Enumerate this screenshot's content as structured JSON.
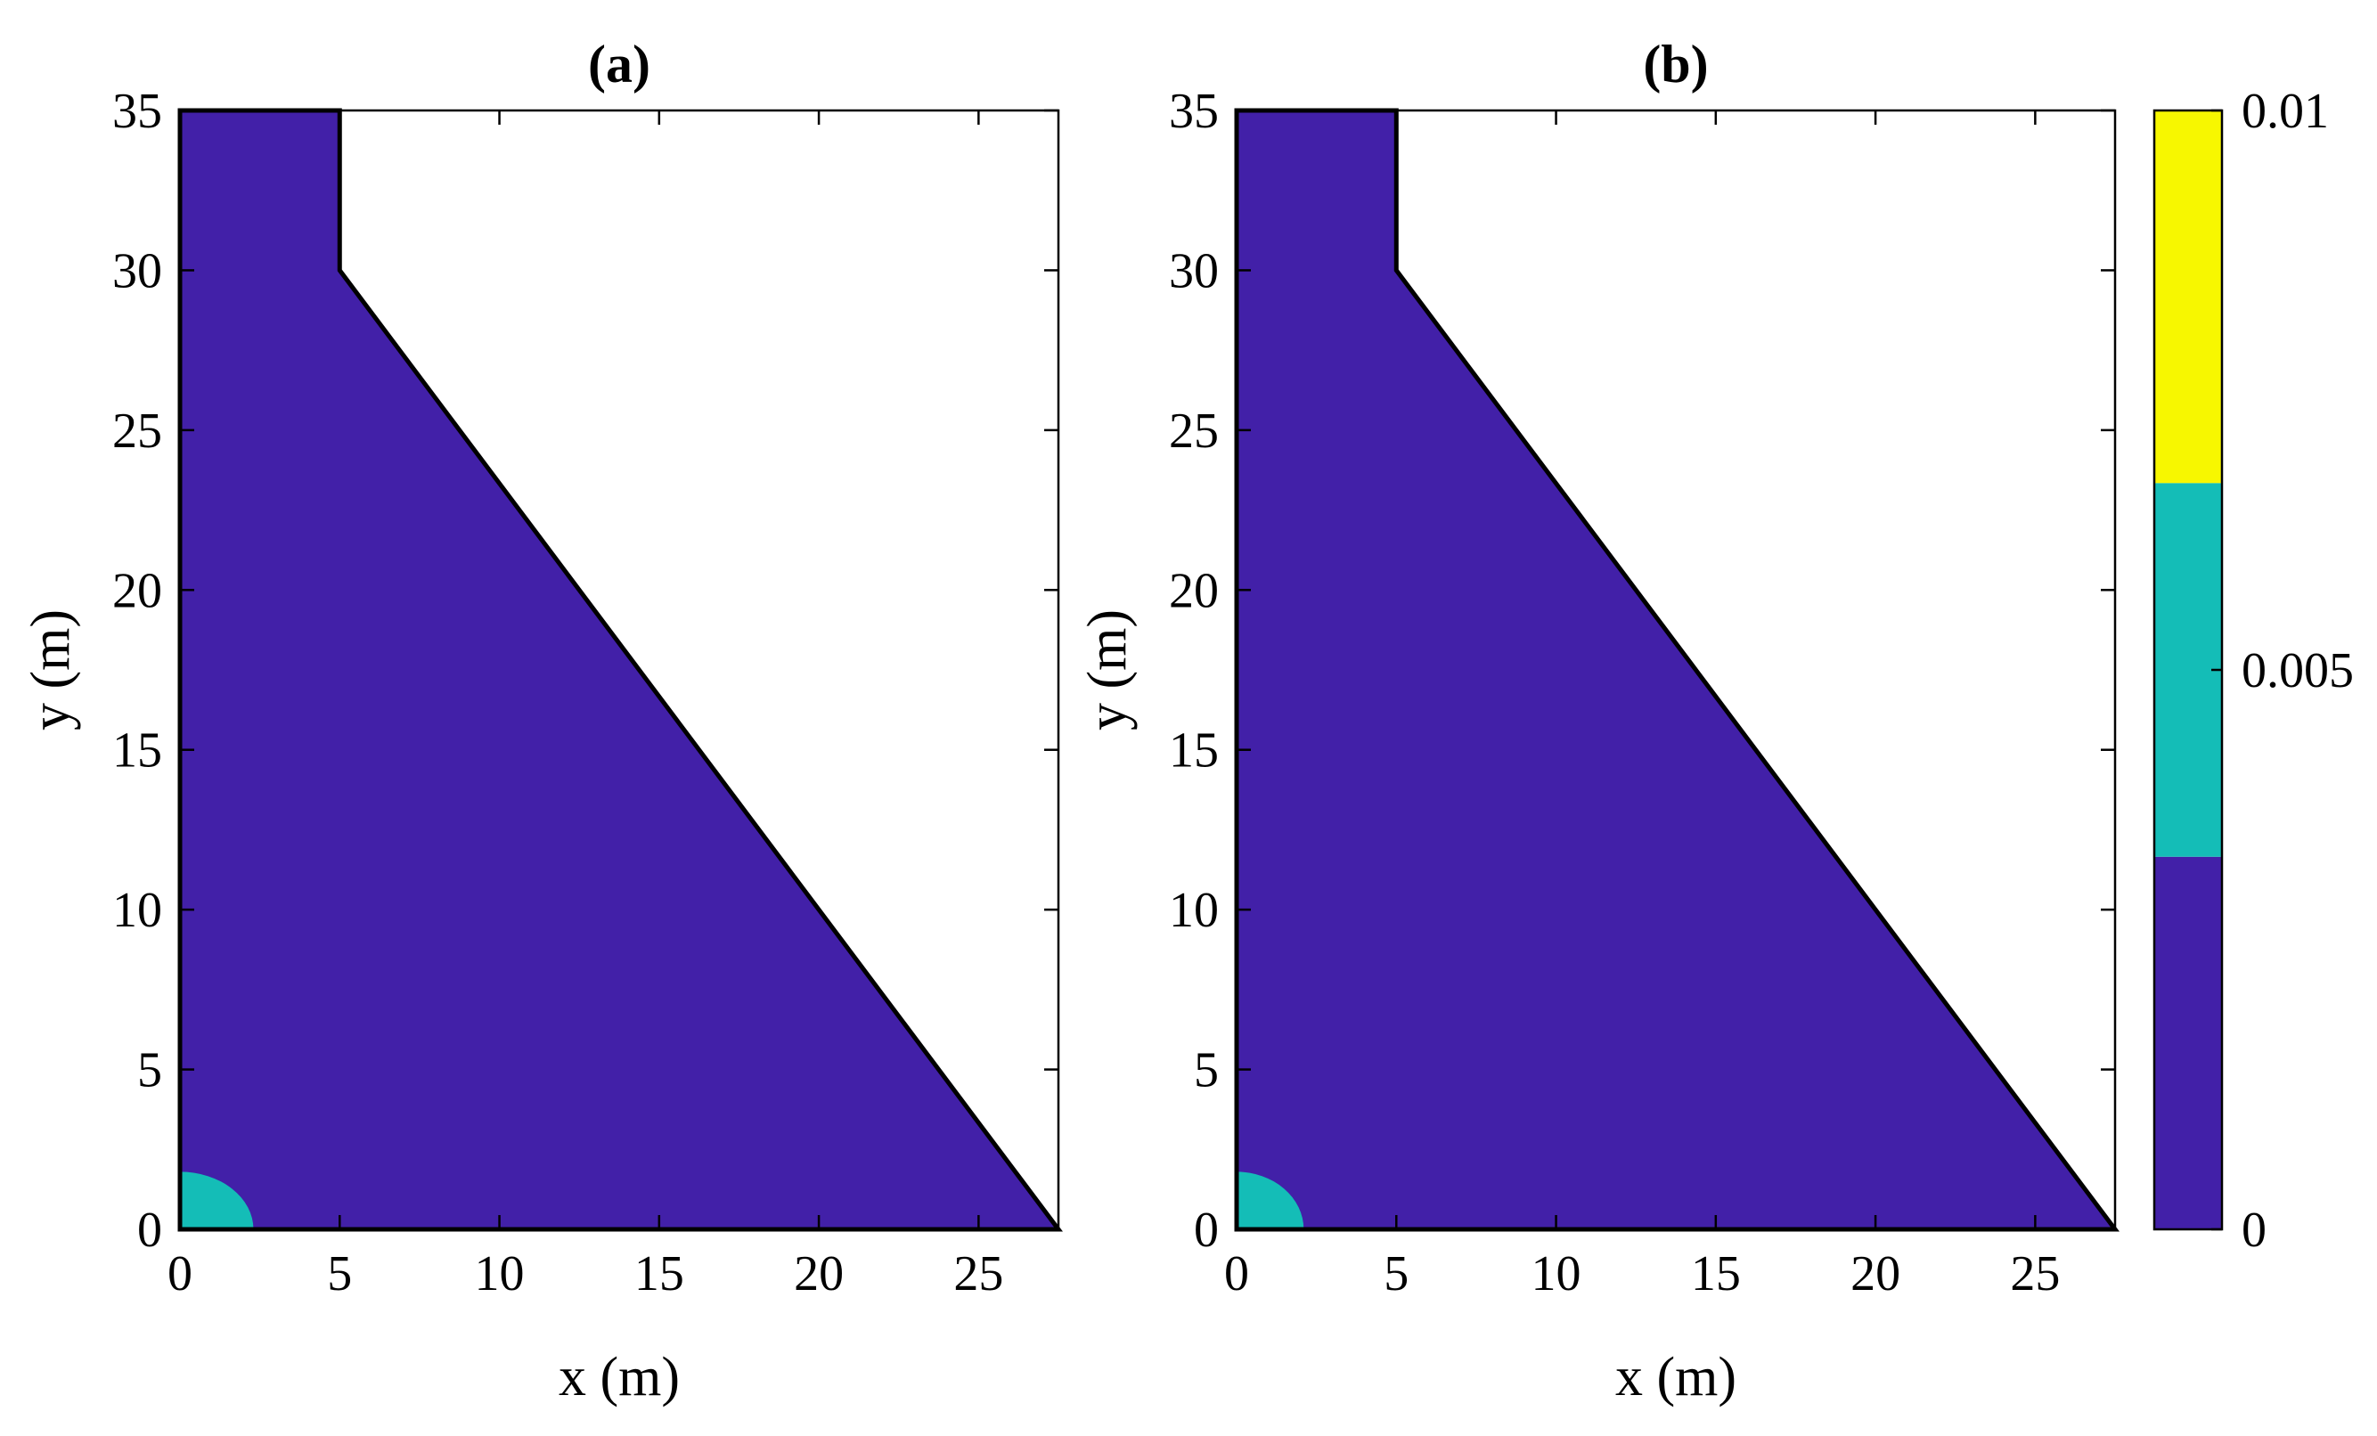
{
  "chart_data": [
    {
      "type": "heatmap",
      "title": "(a)",
      "xlabel": "x (m)",
      "ylabel": "y (m)",
      "xlim": [
        0,
        27.5
      ],
      "ylim": [
        0,
        35
      ],
      "xticks": [
        "0",
        "5",
        "10",
        "15",
        "20",
        "25"
      ],
      "yticks": [
        "0",
        "5",
        "10",
        "15",
        "20",
        "25",
        "30",
        "35"
      ],
      "domain_outline": [
        [
          0,
          0
        ],
        [
          27.5,
          0
        ],
        [
          5,
          30
        ],
        [
          5,
          35
        ],
        [
          0,
          35
        ]
      ],
      "regions": [
        {
          "level": "0 to 0.0033",
          "color": "#4220a8",
          "description": "whole domain"
        },
        {
          "level": "0.0033 to 0.0067",
          "color": "#14bdb7",
          "shape": "quarter-circle at origin",
          "radius_x": 2.3,
          "radius_y": 1.8
        }
      ],
      "grid": false
    },
    {
      "type": "heatmap",
      "title": "(b)",
      "xlabel": "x (m)",
      "ylabel": "y (m)",
      "xlim": [
        0,
        27.5
      ],
      "ylim": [
        0,
        35
      ],
      "xticks": [
        "0",
        "5",
        "10",
        "15",
        "20",
        "25"
      ],
      "yticks": [
        "0",
        "5",
        "10",
        "15",
        "20",
        "25",
        "30",
        "35"
      ],
      "domain_outline": [
        [
          0,
          0
        ],
        [
          27.5,
          0
        ],
        [
          5,
          30
        ],
        [
          5,
          35
        ],
        [
          0,
          35
        ]
      ],
      "regions": [
        {
          "level": "0 to 0.0033",
          "color": "#4220a8",
          "description": "whole domain"
        },
        {
          "level": "0.0033 to 0.0067",
          "color": "#14bdb7",
          "shape": "quarter-circle at origin",
          "radius_x": 2.1,
          "radius_y": 1.8
        }
      ],
      "grid": false
    }
  ],
  "colorbar": {
    "min": 0,
    "max": 0.01,
    "tick_labels": [
      "0",
      "0.005",
      "0.01"
    ],
    "tick_values": [
      0,
      0.005,
      0.01
    ],
    "bands": [
      {
        "from": 0,
        "to": 0.00333,
        "color": "#4220a8"
      },
      {
        "from": 0.00333,
        "to": 0.00667,
        "color": "#14bdb7"
      },
      {
        "from": 0.00667,
        "to": 0.01,
        "color": "#f7f700"
      }
    ]
  }
}
